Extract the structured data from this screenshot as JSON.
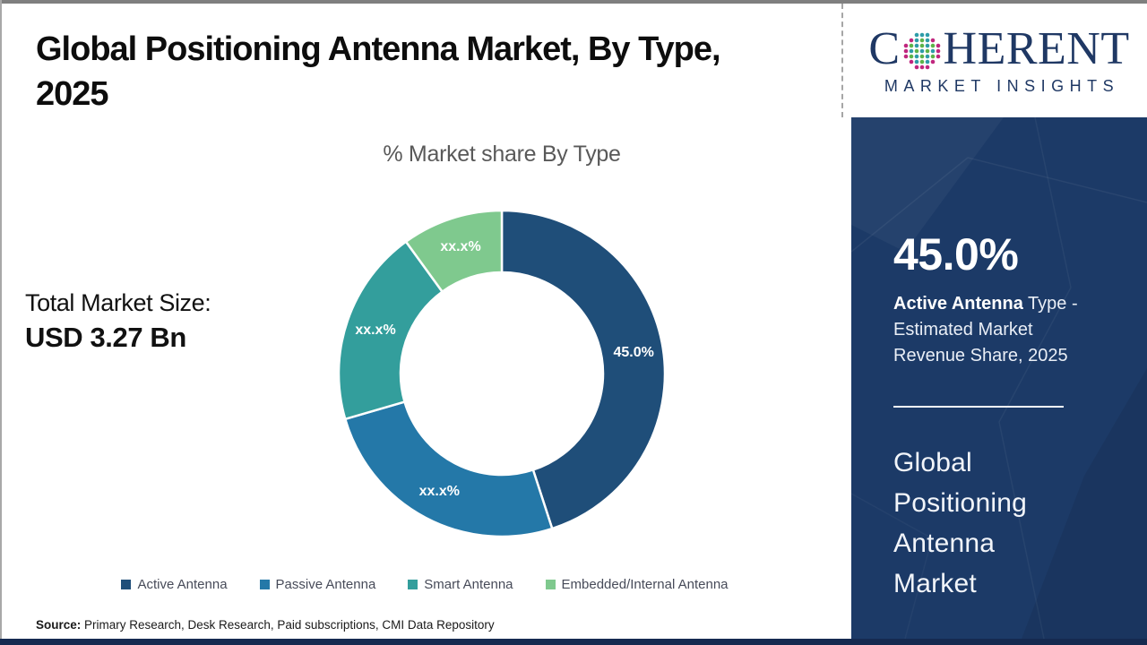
{
  "header": {
    "title": "Global Positioning Antenna Market, By Type,\n2025"
  },
  "stats": {
    "total_label": "Total Market Size:",
    "total_value": "USD 3.27 Bn"
  },
  "chart_data": {
    "type": "pie",
    "donut": true,
    "title": "% Market share By Type",
    "start_angle_deg": 0,
    "direction": "clockwise",
    "categories": [
      "Active Antenna",
      "Passive Antenna",
      "Smart Antenna",
      "Embedded/Internal Antenna"
    ],
    "values": [
      45.0,
      25.5,
      19.5,
      10.0
    ],
    "slice_labels": [
      "45.0%",
      "xx.x%",
      "xx.x%",
      "xx.x%"
    ],
    "colors": [
      "#1f4e79",
      "#2478a8",
      "#339e9c",
      "#7fc98e"
    ],
    "inner_radius_ratio": 0.62,
    "legend_position": "bottom"
  },
  "source": {
    "label": "Source:",
    "text": " Primary Research, Desk Research, Paid subscriptions, CMI Data Repository"
  },
  "sidebar": {
    "logo": {
      "brand_first_letter": "C",
      "brand_rest": "HERENT",
      "subtitle": "MARKET INSIGHTS",
      "navy": "#1f3864",
      "globe_colors": {
        "teal": "#2d9ca8",
        "green": "#5cb348",
        "magenta": "#c0267e"
      }
    },
    "panel_bg": "#1c3a67",
    "stat_value": "45.0%",
    "stat_desc_bold": "Active Antenna",
    "stat_desc_rest": " Type - Estimated Market Revenue Share, 2025",
    "market_name": "Global\nPositioning\nAntenna\nMarket"
  }
}
